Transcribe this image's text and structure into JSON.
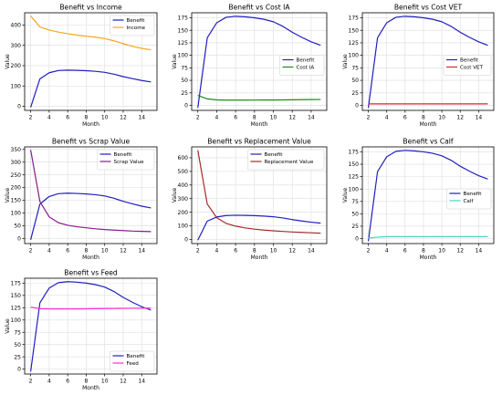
{
  "colors": {
    "benefit": "#1f1fbf",
    "income": "#f5a623",
    "cost_ia": "#1a8a1a",
    "cost_vet": "#d62728",
    "scrap": "#8b1a8b",
    "replacement": "#a52a2a",
    "calf": "#48d1cc",
    "feed": "#ff33cc",
    "grid": "#dddddd",
    "axis": "#000000"
  },
  "chart_data": [
    {
      "type": "line",
      "title": "Benefit vs Income",
      "xlabel": "Month",
      "ylabel": "Value",
      "x": [
        2,
        3,
        4,
        5,
        6,
        7,
        8,
        9,
        10,
        11,
        12,
        13,
        14,
        15
      ],
      "xticks": [
        2,
        4,
        6,
        8,
        10,
        12,
        14
      ],
      "yticks": [
        0,
        100,
        200,
        300,
        400
      ],
      "ylim": [
        -20,
        460
      ],
      "legend": "top-right",
      "grid": true,
      "series": [
        {
          "name": "Benefit",
          "color_key": "benefit",
          "values": [
            -5,
            135,
            165,
            176,
            178,
            177,
            175,
            172,
            167,
            158,
            146,
            136,
            127,
            120
          ]
        },
        {
          "name": "Income",
          "color_key": "income",
          "values": [
            445,
            390,
            375,
            365,
            357,
            350,
            345,
            340,
            333,
            322,
            308,
            295,
            285,
            278
          ]
        }
      ]
    },
    {
      "type": "line",
      "title": "Benefit vs Cost IA",
      "xlabel": "Month",
      "ylabel": "Value",
      "x": [
        2,
        3,
        4,
        5,
        6,
        7,
        8,
        9,
        10,
        11,
        12,
        13,
        14,
        15
      ],
      "xticks": [
        2,
        4,
        6,
        8,
        10,
        12,
        14
      ],
      "yticks": [
        0,
        25,
        50,
        75,
        100,
        125,
        150,
        175
      ],
      "ylim": [
        -10,
        185
      ],
      "legend": "center-right",
      "grid": true,
      "series": [
        {
          "name": "Benefit",
          "color_key": "benefit",
          "values": [
            -5,
            135,
            165,
            176,
            178,
            177,
            175,
            172,
            167,
            158,
            146,
            136,
            127,
            120
          ]
        },
        {
          "name": "Cost IA",
          "color_key": "cost_ia",
          "values": [
            20,
            13,
            11,
            10.5,
            10.5,
            10.5,
            10.6,
            10.7,
            10.8,
            11,
            11.2,
            11.4,
            11.6,
            11.8
          ]
        }
      ]
    },
    {
      "type": "line",
      "title": "Benefit vs Cost VET",
      "xlabel": "Month",
      "ylabel": "Value",
      "x": [
        2,
        3,
        4,
        5,
        6,
        7,
        8,
        9,
        10,
        11,
        12,
        13,
        14,
        15
      ],
      "xticks": [
        2,
        4,
        6,
        8,
        10,
        12,
        14
      ],
      "yticks": [
        0,
        25,
        50,
        75,
        100,
        125,
        150,
        175
      ],
      "ylim": [
        -10,
        185
      ],
      "legend": "center-right",
      "grid": true,
      "series": [
        {
          "name": "Benefit",
          "color_key": "benefit",
          "values": [
            -5,
            135,
            165,
            176,
            178,
            177,
            175,
            172,
            167,
            158,
            146,
            136,
            127,
            120
          ]
        },
        {
          "name": "Cost VET",
          "color_key": "cost_vet",
          "values": [
            3,
            3,
            3,
            3,
            3,
            3,
            3,
            3,
            3,
            3,
            3,
            3,
            3,
            3
          ]
        }
      ]
    },
    {
      "type": "line",
      "title": "Benefit vs Scrap Value",
      "xlabel": "Month",
      "ylabel": "Value",
      "x": [
        2,
        3,
        4,
        5,
        6,
        7,
        8,
        9,
        10,
        11,
        12,
        13,
        14,
        15
      ],
      "xticks": [
        2,
        4,
        6,
        8,
        10,
        12,
        14
      ],
      "yticks": [
        0,
        50,
        100,
        150,
        200,
        250,
        300,
        350
      ],
      "ylim": [
        -20,
        360
      ],
      "legend": "top-right",
      "grid": true,
      "series": [
        {
          "name": "Benefit",
          "color_key": "benefit",
          "values": [
            -5,
            135,
            165,
            176,
            178,
            177,
            175,
            172,
            167,
            158,
            146,
            136,
            127,
            120
          ]
        },
        {
          "name": "Scrap Value",
          "color_key": "scrap",
          "values": [
            348,
            145,
            85,
            62,
            52,
            46,
            42,
            38,
            35,
            33,
            31,
            29,
            28,
            27
          ]
        }
      ]
    },
    {
      "type": "line",
      "title": "Benefit vs Replacement Value",
      "xlabel": "Month",
      "ylabel": "Value",
      "x": [
        2,
        3,
        4,
        5,
        6,
        7,
        8,
        9,
        10,
        11,
        12,
        13,
        14,
        15
      ],
      "xticks": [
        2,
        4,
        6,
        8,
        10,
        12,
        14
      ],
      "yticks": [
        0,
        100,
        200,
        300,
        400,
        500,
        600
      ],
      "ylim": [
        -30,
        680
      ],
      "legend": "top-right",
      "grid": true,
      "series": [
        {
          "name": "Benefit",
          "color_key": "benefit",
          "values": [
            -5,
            135,
            165,
            176,
            178,
            177,
            175,
            172,
            167,
            158,
            146,
            136,
            127,
            120
          ]
        },
        {
          "name": "Replacement Value",
          "color_key": "replacement",
          "values": [
            655,
            260,
            160,
            118,
            98,
            85,
            76,
            69,
            64,
            59,
            55,
            52,
            49,
            46
          ]
        }
      ]
    },
    {
      "type": "line",
      "title": "Benefit vs Calf",
      "xlabel": "Month",
      "ylabel": "Value",
      "x": [
        2,
        3,
        4,
        5,
        6,
        7,
        8,
        9,
        10,
        11,
        12,
        13,
        14,
        15
      ],
      "xticks": [
        2,
        4,
        6,
        8,
        10,
        12,
        14
      ],
      "yticks": [
        0,
        25,
        50,
        75,
        100,
        125,
        150,
        175
      ],
      "ylim": [
        -10,
        185
      ],
      "legend": "center-right",
      "grid": true,
      "series": [
        {
          "name": "Benefit",
          "color_key": "benefit",
          "values": [
            -5,
            135,
            165,
            176,
            178,
            177,
            175,
            172,
            167,
            158,
            146,
            136,
            127,
            120
          ]
        },
        {
          "name": "Calf",
          "color_key": "calf",
          "values": [
            1,
            3,
            4,
            4,
            4,
            4,
            4,
            4,
            4,
            4,
            4,
            4,
            4,
            4
          ]
        }
      ]
    },
    {
      "type": "line",
      "title": "Benefit vs Feed",
      "xlabel": "Month",
      "ylabel": "Value",
      "x": [
        2,
        3,
        4,
        5,
        6,
        7,
        8,
        9,
        10,
        11,
        12,
        13,
        14,
        15
      ],
      "xticks": [
        2,
        4,
        6,
        8,
        10,
        12,
        14
      ],
      "yticks": [
        0,
        25,
        50,
        75,
        100,
        125,
        150,
        175
      ],
      "ylim": [
        -10,
        185
      ],
      "legend": "bottom-right",
      "grid": true,
      "series": [
        {
          "name": "Benefit",
          "color_key": "benefit",
          "values": [
            -5,
            135,
            165,
            176,
            178,
            177,
            175,
            172,
            167,
            158,
            146,
            136,
            127,
            120
          ]
        },
        {
          "name": "Feed",
          "color_key": "feed",
          "values": [
            126,
            123,
            122.5,
            122.5,
            122.5,
            122.6,
            122.8,
            123,
            123.2,
            123.4,
            123.6,
            123.8,
            124,
            124.2
          ]
        }
      ]
    }
  ]
}
